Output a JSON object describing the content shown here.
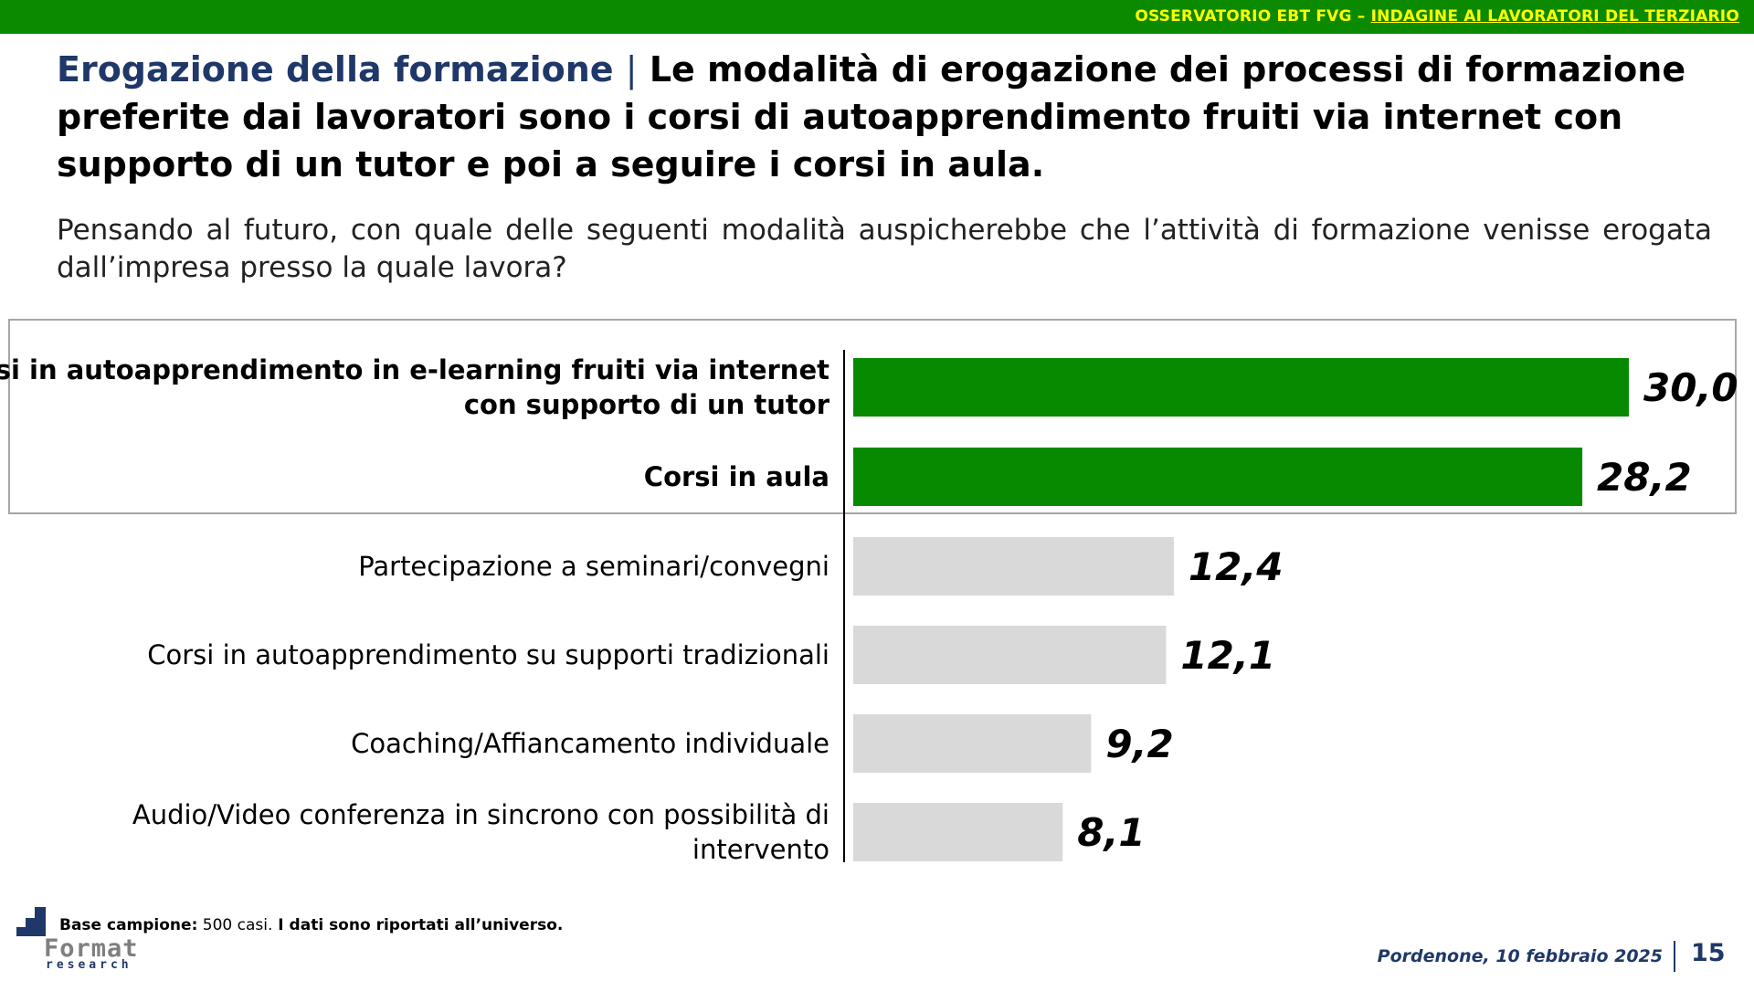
{
  "header": {
    "org_label": "OSSERVATORIO EBT FVG – ",
    "survey_label": "INDAGINE AI LAVORATORI DEL TERZIARIO"
  },
  "title": {
    "lead": "Erogazione della formazione",
    "separator": "|",
    "text": "Le modalità di erogazione dei processi di formazione preferite dai lavoratori sono i corsi di autoapprendimento fruiti via internet con supporto di un tutor e poi a seguire i corsi in aula."
  },
  "question": "Pensando al futuro, con quale delle seguenti modalità auspicherebbe che l’attività di formazione venisse erogata dall’impresa presso la quale lavora?",
  "chart_data": {
    "type": "bar",
    "orientation": "horizontal",
    "categories": [
      "Corsi in autoapprendimento in e-learning fruiti via internet con supporto di un tutor",
      "Corsi in aula",
      "Partecipazione a seminari/convegni",
      "Corsi in autoapprendimento su supporti tradizionali",
      "Coaching/Affiancamento individuale",
      "Audio/Video conferenza in sincrono con possibilità di intervento"
    ],
    "label_lines": [
      [
        "Corsi in autoapprendimento in e-learning fruiti via internet",
        "con supporto di un tutor"
      ],
      [
        "Corsi in aula"
      ],
      [
        "Partecipazione a seminari/convegni"
      ],
      [
        "Corsi in autoapprendimento su supporti tradizionali"
      ],
      [
        "Coaching/Affiancamento individuale"
      ],
      [
        "Audio/Video conferenza in sincrono con possibilità di",
        "intervento"
      ]
    ],
    "values": [
      30.0,
      28.2,
      12.4,
      12.1,
      9.2,
      8.1
    ],
    "value_labels": [
      "30,0",
      "28,2",
      "12,4",
      "12,1",
      "9,2",
      "8,1"
    ],
    "highlighted": [
      true,
      true,
      false,
      false,
      false,
      false
    ],
    "colors": {
      "highlight": "#078a00",
      "default": "#d9d9d9"
    },
    "xlim": [
      0,
      30.0
    ],
    "grid": false
  },
  "footer": {
    "base_label": "Base campione:",
    "base_value": " 500 casi.",
    "base_note": " I dati sono riportati all’universo.",
    "logo_name": "Format",
    "logo_sub": "research",
    "date": "Pordenone, 10 febbraio 2025",
    "page": "15"
  }
}
